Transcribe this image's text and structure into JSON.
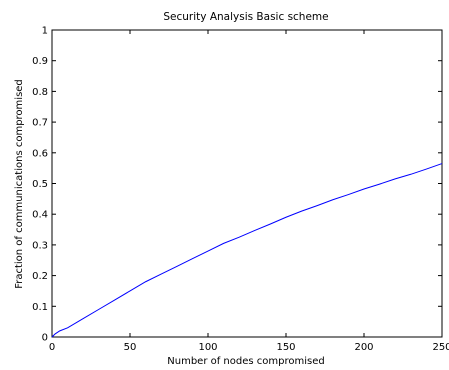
{
  "chart_data": {
    "type": "line",
    "title": "Security Analysis Basic scheme",
    "xlabel": "Number of nodes compromised",
    "ylabel": "Fraction of communications compromised",
    "xlim": [
      0,
      250
    ],
    "ylim": [
      0,
      1
    ],
    "x_ticks": [
      0,
      50,
      100,
      150,
      200,
      250
    ],
    "x_tick_labels": [
      "0",
      "50",
      "100",
      "150",
      "200",
      "250"
    ],
    "y_ticks": [
      0,
      0.1,
      0.2,
      0.3,
      0.4,
      0.5,
      0.6,
      0.7,
      0.8,
      0.9,
      1
    ],
    "y_tick_labels": [
      "0",
      "0.1",
      "0.2",
      "0.3",
      "0.4",
      "0.5",
      "0.6",
      "0.7",
      "0.8",
      "0.9",
      "1"
    ],
    "grid": false,
    "legend": "none",
    "series": [
      {
        "color": "#0000ff",
        "x": [
          0,
          2,
          5,
          10,
          20,
          30,
          40,
          50,
          60,
          70,
          80,
          90,
          100,
          110,
          120,
          130,
          140,
          150,
          160,
          170,
          180,
          190,
          200,
          210,
          220,
          230,
          240,
          250
        ],
        "y": [
          0.0,
          0.01,
          0.02,
          0.03,
          0.06,
          0.09,
          0.12,
          0.15,
          0.18,
          0.205,
          0.23,
          0.255,
          0.28,
          0.305,
          0.325,
          0.347,
          0.368,
          0.39,
          0.41,
          0.428,
          0.447,
          0.464,
          0.482,
          0.498,
          0.515,
          0.53,
          0.547,
          0.565
        ]
      }
    ]
  }
}
